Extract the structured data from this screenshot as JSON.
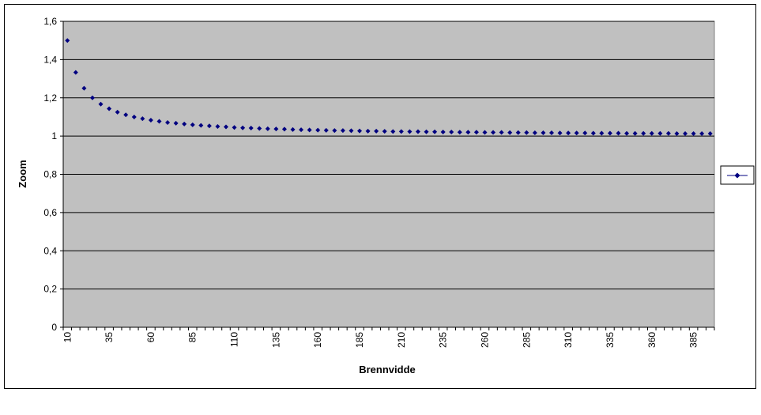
{
  "chart_data": {
    "type": "scatter",
    "title": "",
    "xlabel": "Brennvidde",
    "ylabel": "Zoom",
    "x_tick_labels": [
      "10",
      "35",
      "60",
      "85",
      "110",
      "135",
      "160",
      "185",
      "210",
      "235",
      "260",
      "285",
      "310",
      "335",
      "360",
      "385"
    ],
    "y_tick_labels": [
      "0",
      "0,2",
      "0,4",
      "0,6",
      "0,8",
      "1",
      "1,2",
      "1,4",
      "1,6"
    ],
    "ylim": [
      0,
      1.6
    ],
    "xlim": [
      10,
      395
    ],
    "grid": true,
    "legend_position": "right",
    "colors": {
      "plot_bg": "#c0c0c0",
      "marker": "#000080",
      "grid": "#000000"
    },
    "series": [
      {
        "name": "",
        "marker": "diamond",
        "x": [
          10,
          15,
          20,
          25,
          30,
          35,
          40,
          45,
          50,
          55,
          60,
          65,
          70,
          75,
          80,
          85,
          90,
          95,
          100,
          105,
          110,
          115,
          120,
          125,
          130,
          135,
          140,
          145,
          150,
          155,
          160,
          165,
          170,
          175,
          180,
          185,
          190,
          195,
          200,
          205,
          210,
          215,
          220,
          225,
          230,
          235,
          240,
          245,
          250,
          255,
          260,
          265,
          270,
          275,
          280,
          285,
          290,
          295,
          300,
          305,
          310,
          315,
          320,
          325,
          330,
          335,
          340,
          345,
          350,
          355,
          360,
          365,
          370,
          375,
          380,
          385,
          390,
          395
        ],
        "values": [
          1.5,
          1.333,
          1.25,
          1.2,
          1.167,
          1.143,
          1.125,
          1.111,
          1.1,
          1.091,
          1.083,
          1.077,
          1.071,
          1.067,
          1.063,
          1.059,
          1.056,
          1.053,
          1.05,
          1.048,
          1.045,
          1.043,
          1.042,
          1.04,
          1.038,
          1.037,
          1.036,
          1.034,
          1.033,
          1.032,
          1.031,
          1.03,
          1.029,
          1.029,
          1.028,
          1.027,
          1.026,
          1.026,
          1.025,
          1.024,
          1.024,
          1.023,
          1.023,
          1.022,
          1.022,
          1.021,
          1.021,
          1.02,
          1.02,
          1.02,
          1.019,
          1.019,
          1.019,
          1.018,
          1.018,
          1.018,
          1.017,
          1.017,
          1.017,
          1.016,
          1.016,
          1.016,
          1.016,
          1.015,
          1.015,
          1.015,
          1.015,
          1.014,
          1.014,
          1.014,
          1.014,
          1.014,
          1.014,
          1.013,
          1.013,
          1.013,
          1.013,
          1.013
        ]
      }
    ]
  }
}
